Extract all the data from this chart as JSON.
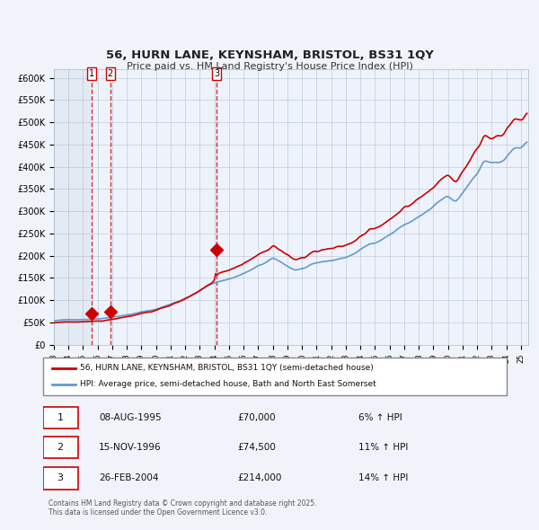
{
  "title": "56, HURN LANE, KEYNSHAM, BRISTOL, BS31 1QY",
  "subtitle": "Price paid vs. HM Land Registry's House Price Index (HPI)",
  "legend_property": "56, HURN LANE, KEYNSHAM, BRISTOL, BS31 1QY (semi-detached house)",
  "legend_hpi": "HPI: Average price, semi-detached house, Bath and North East Somerset",
  "purchases": [
    {
      "num": 1,
      "date": "08-AUG-1995",
      "date_val": 1995.6,
      "price": 70000,
      "pct": "6%",
      "dir": "↑"
    },
    {
      "num": 2,
      "date": "15-NOV-1996",
      "date_val": 1996.87,
      "price": 74500,
      "pct": "11%",
      "dir": "↑"
    },
    {
      "num": 3,
      "date": "26-FEB-2004",
      "date_val": 2004.15,
      "price": 214000,
      "pct": "14%",
      "dir": "↑"
    }
  ],
  "copyright": "Contains HM Land Registry data © Crown copyright and database right 2025.\nThis data is licensed under the Open Government Licence v3.0.",
  "ylim": [
    0,
    620000
  ],
  "xlim_start": 1993.0,
  "xlim_end": 2025.5,
  "ytick_step": 50000,
  "property_color": "#CC0000",
  "hpi_color": "#6699CC",
  "vline_color": "#CC0000",
  "bg_color": "#EEF3FB",
  "plot_bg": "#FFFFFF",
  "grid_color": "#AABBCC",
  "hatch_color": "#CCDDEE"
}
